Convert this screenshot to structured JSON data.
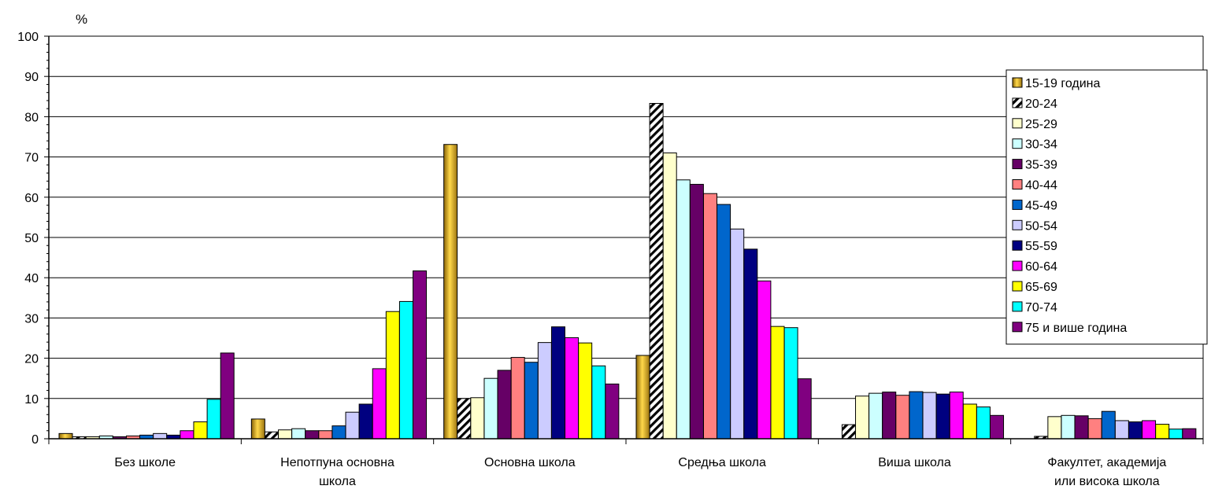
{
  "chart_data": {
    "type": "bar",
    "title": "",
    "xlabel": "",
    "ylabel": "%",
    "ylim": [
      0,
      100
    ],
    "yticks": [
      0,
      10,
      20,
      30,
      40,
      50,
      60,
      70,
      80,
      90,
      100
    ],
    "grid": true,
    "legend_position": "right",
    "categories": [
      [
        "Без школе"
      ],
      [
        "Непотпуна основна",
        "школа"
      ],
      [
        "Основна школа"
      ],
      [
        "Средња  школа"
      ],
      [
        "Виша школа"
      ],
      [
        "Факултет, академија",
        "или висока школа"
      ]
    ],
    "series": [
      {
        "name": "15-19 година",
        "color": "#D4A017",
        "pattern": "gold",
        "values": [
          1.3,
          4.9,
          73.1,
          20.7,
          0,
          0
        ]
      },
      {
        "name": "20-24",
        "color": "#FFFFFF",
        "pattern": "hatch",
        "values": [
          0.5,
          1.7,
          10.0,
          83.3,
          3.5,
          0.6
        ]
      },
      {
        "name": "25-29",
        "color": "#FFFFCC",
        "values": [
          0.5,
          2.2,
          10.2,
          71.0,
          10.6,
          5.5
        ]
      },
      {
        "name": "30-34",
        "color": "#CCFFFF",
        "values": [
          0.7,
          2.5,
          15.0,
          64.3,
          11.3,
          5.8
        ]
      },
      {
        "name": "35-39",
        "color": "#660066",
        "values": [
          0.5,
          2.0,
          17.0,
          63.2,
          11.6,
          5.7
        ]
      },
      {
        "name": "40-44",
        "color": "#FF8080",
        "values": [
          0.7,
          2.0,
          20.2,
          60.9,
          10.8,
          5.0
        ]
      },
      {
        "name": "45-49",
        "color": "#0066CC",
        "values": [
          0.9,
          3.2,
          19.0,
          58.2,
          11.7,
          6.8
        ]
      },
      {
        "name": "50-54",
        "color": "#CCCCFF",
        "values": [
          1.3,
          6.6,
          23.9,
          52.1,
          11.5,
          4.5
        ]
      },
      {
        "name": "55-59",
        "color": "#000080",
        "values": [
          0.9,
          8.6,
          27.8,
          47.1,
          11.1,
          4.2
        ]
      },
      {
        "name": "60-64",
        "color": "#FF00FF",
        "values": [
          2.0,
          17.4,
          25.1,
          39.2,
          11.6,
          4.5
        ]
      },
      {
        "name": "65-69",
        "color": "#FFFF00",
        "values": [
          4.2,
          31.6,
          23.8,
          27.9,
          8.6,
          3.6
        ]
      },
      {
        "name": "70-74",
        "color": "#00FFFF",
        "values": [
          9.8,
          34.1,
          18.1,
          27.6,
          7.9,
          2.4
        ]
      },
      {
        "name": "75 и више година",
        "color": "#800080",
        "values": [
          21.3,
          41.7,
          13.6,
          14.9,
          5.8,
          2.5
        ]
      }
    ]
  }
}
